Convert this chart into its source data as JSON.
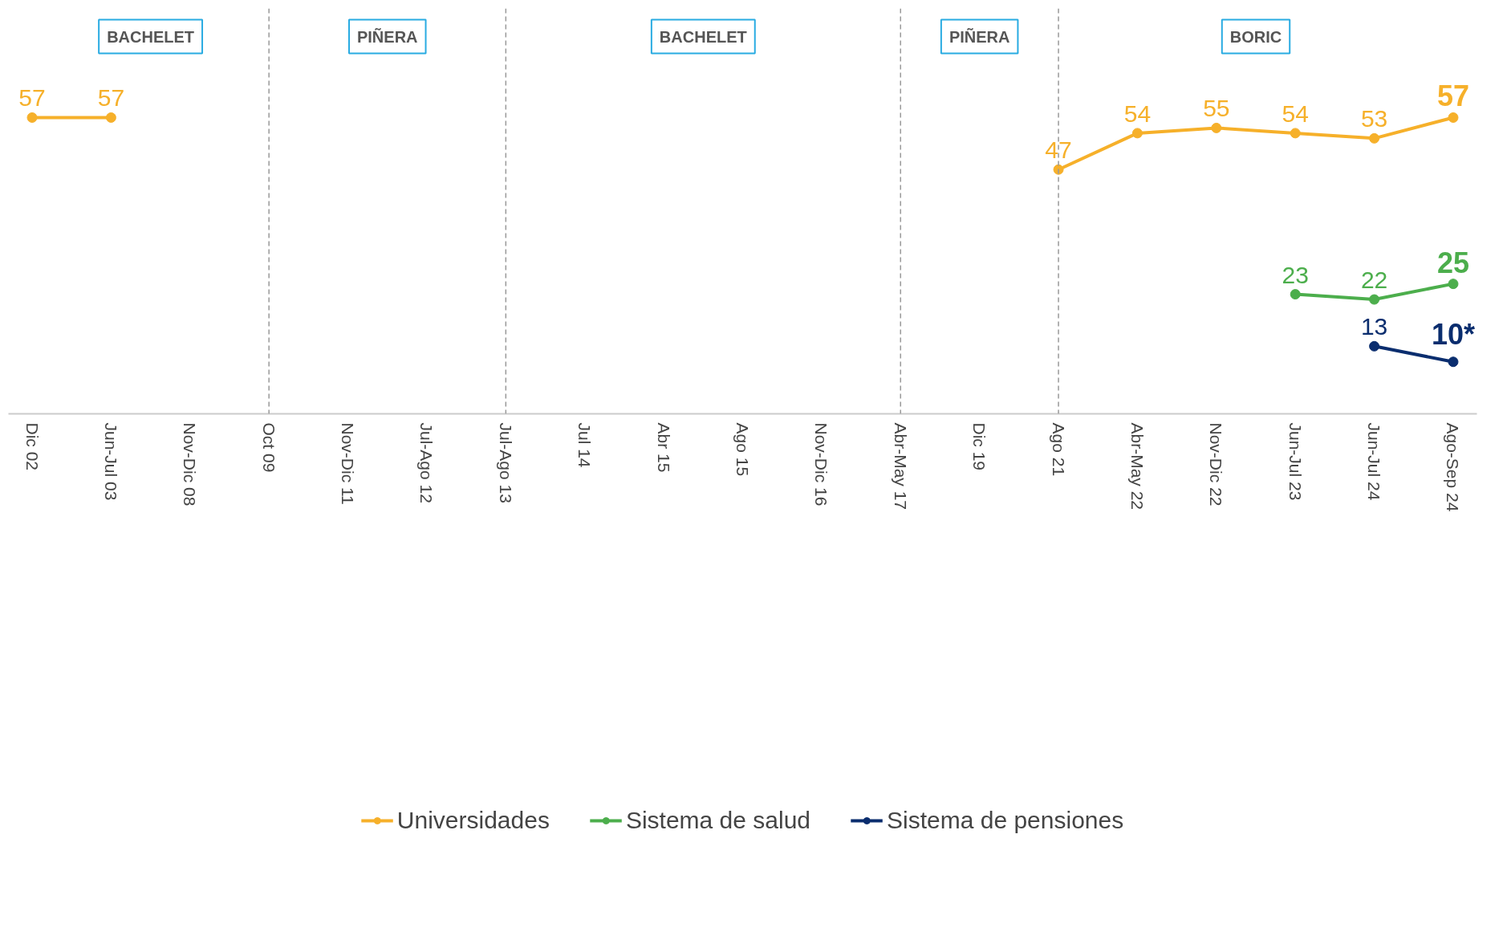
{
  "chart_data": {
    "type": "line",
    "categories": [
      "Dic 02",
      "Jun-Jul 03",
      "Nov-Dic 08",
      "Oct 09",
      "Nov-Dic 11",
      "Jul-Ago 12",
      "Jul-Ago 13",
      "Jul 14",
      "Abr 15",
      "Ago 15",
      "Nov-Dic 16",
      "Abr-May 17",
      "Dic 19",
      "Ago 21",
      "Abr-May 22",
      "Nov-Dic 22",
      "Jun-Jul 23",
      "Jun-Jul 24",
      "Ago-Sep 24"
    ],
    "series": [
      {
        "name": "Universidades",
        "color": "#f6b02a",
        "values": [
          57,
          57,
          null,
          null,
          null,
          null,
          null,
          null,
          null,
          null,
          null,
          null,
          null,
          47,
          54,
          55,
          54,
          53,
          57
        ],
        "value_labels": [
          "57",
          "57",
          null,
          null,
          null,
          null,
          null,
          null,
          null,
          null,
          null,
          null,
          null,
          "47",
          "54",
          "55",
          "54",
          "53",
          "57"
        ]
      },
      {
        "name": "Sistema de salud",
        "color": "#4cae4c",
        "values": [
          null,
          null,
          null,
          null,
          null,
          null,
          null,
          null,
          null,
          null,
          null,
          null,
          null,
          null,
          null,
          null,
          23,
          22,
          25
        ],
        "value_labels": [
          null,
          null,
          null,
          null,
          null,
          null,
          null,
          null,
          null,
          null,
          null,
          null,
          null,
          null,
          null,
          null,
          "23",
          "22",
          "25"
        ]
      },
      {
        "name": "Sistema de pensiones",
        "color": "#0a2d6e",
        "values": [
          null,
          null,
          null,
          null,
          null,
          null,
          null,
          null,
          null,
          null,
          null,
          null,
          null,
          null,
          null,
          null,
          null,
          13,
          10
        ],
        "value_labels": [
          null,
          null,
          null,
          null,
          null,
          null,
          null,
          null,
          null,
          null,
          null,
          null,
          null,
          null,
          null,
          null,
          null,
          "13",
          "10*"
        ]
      }
    ],
    "ylim": [
      0,
      78
    ],
    "marker": "circle",
    "line_style": "solid",
    "grid": false,
    "legend": "bottom",
    "tick_labels": "x",
    "ref_lines": [
      {
        "axis": "x",
        "value": "Oct 09",
        "label": null,
        "color": "#999999",
        "line_style": "dashed"
      },
      {
        "axis": "x",
        "value": "Jul-Ago 13",
        "label": null,
        "color": "#999999",
        "line_style": "dashed"
      },
      {
        "axis": "x",
        "value": "Abr-May 17",
        "label": null,
        "color": "#999999",
        "line_style": "dashed"
      },
      {
        "axis": "x",
        "value": "Ago 21",
        "label": null,
        "color": "#999999",
        "line_style": "dashed"
      }
    ],
    "annotations": [
      "BACHELET",
      "PIÑERA",
      "BACHELET",
      "PIÑERA",
      "BORIC"
    ]
  }
}
